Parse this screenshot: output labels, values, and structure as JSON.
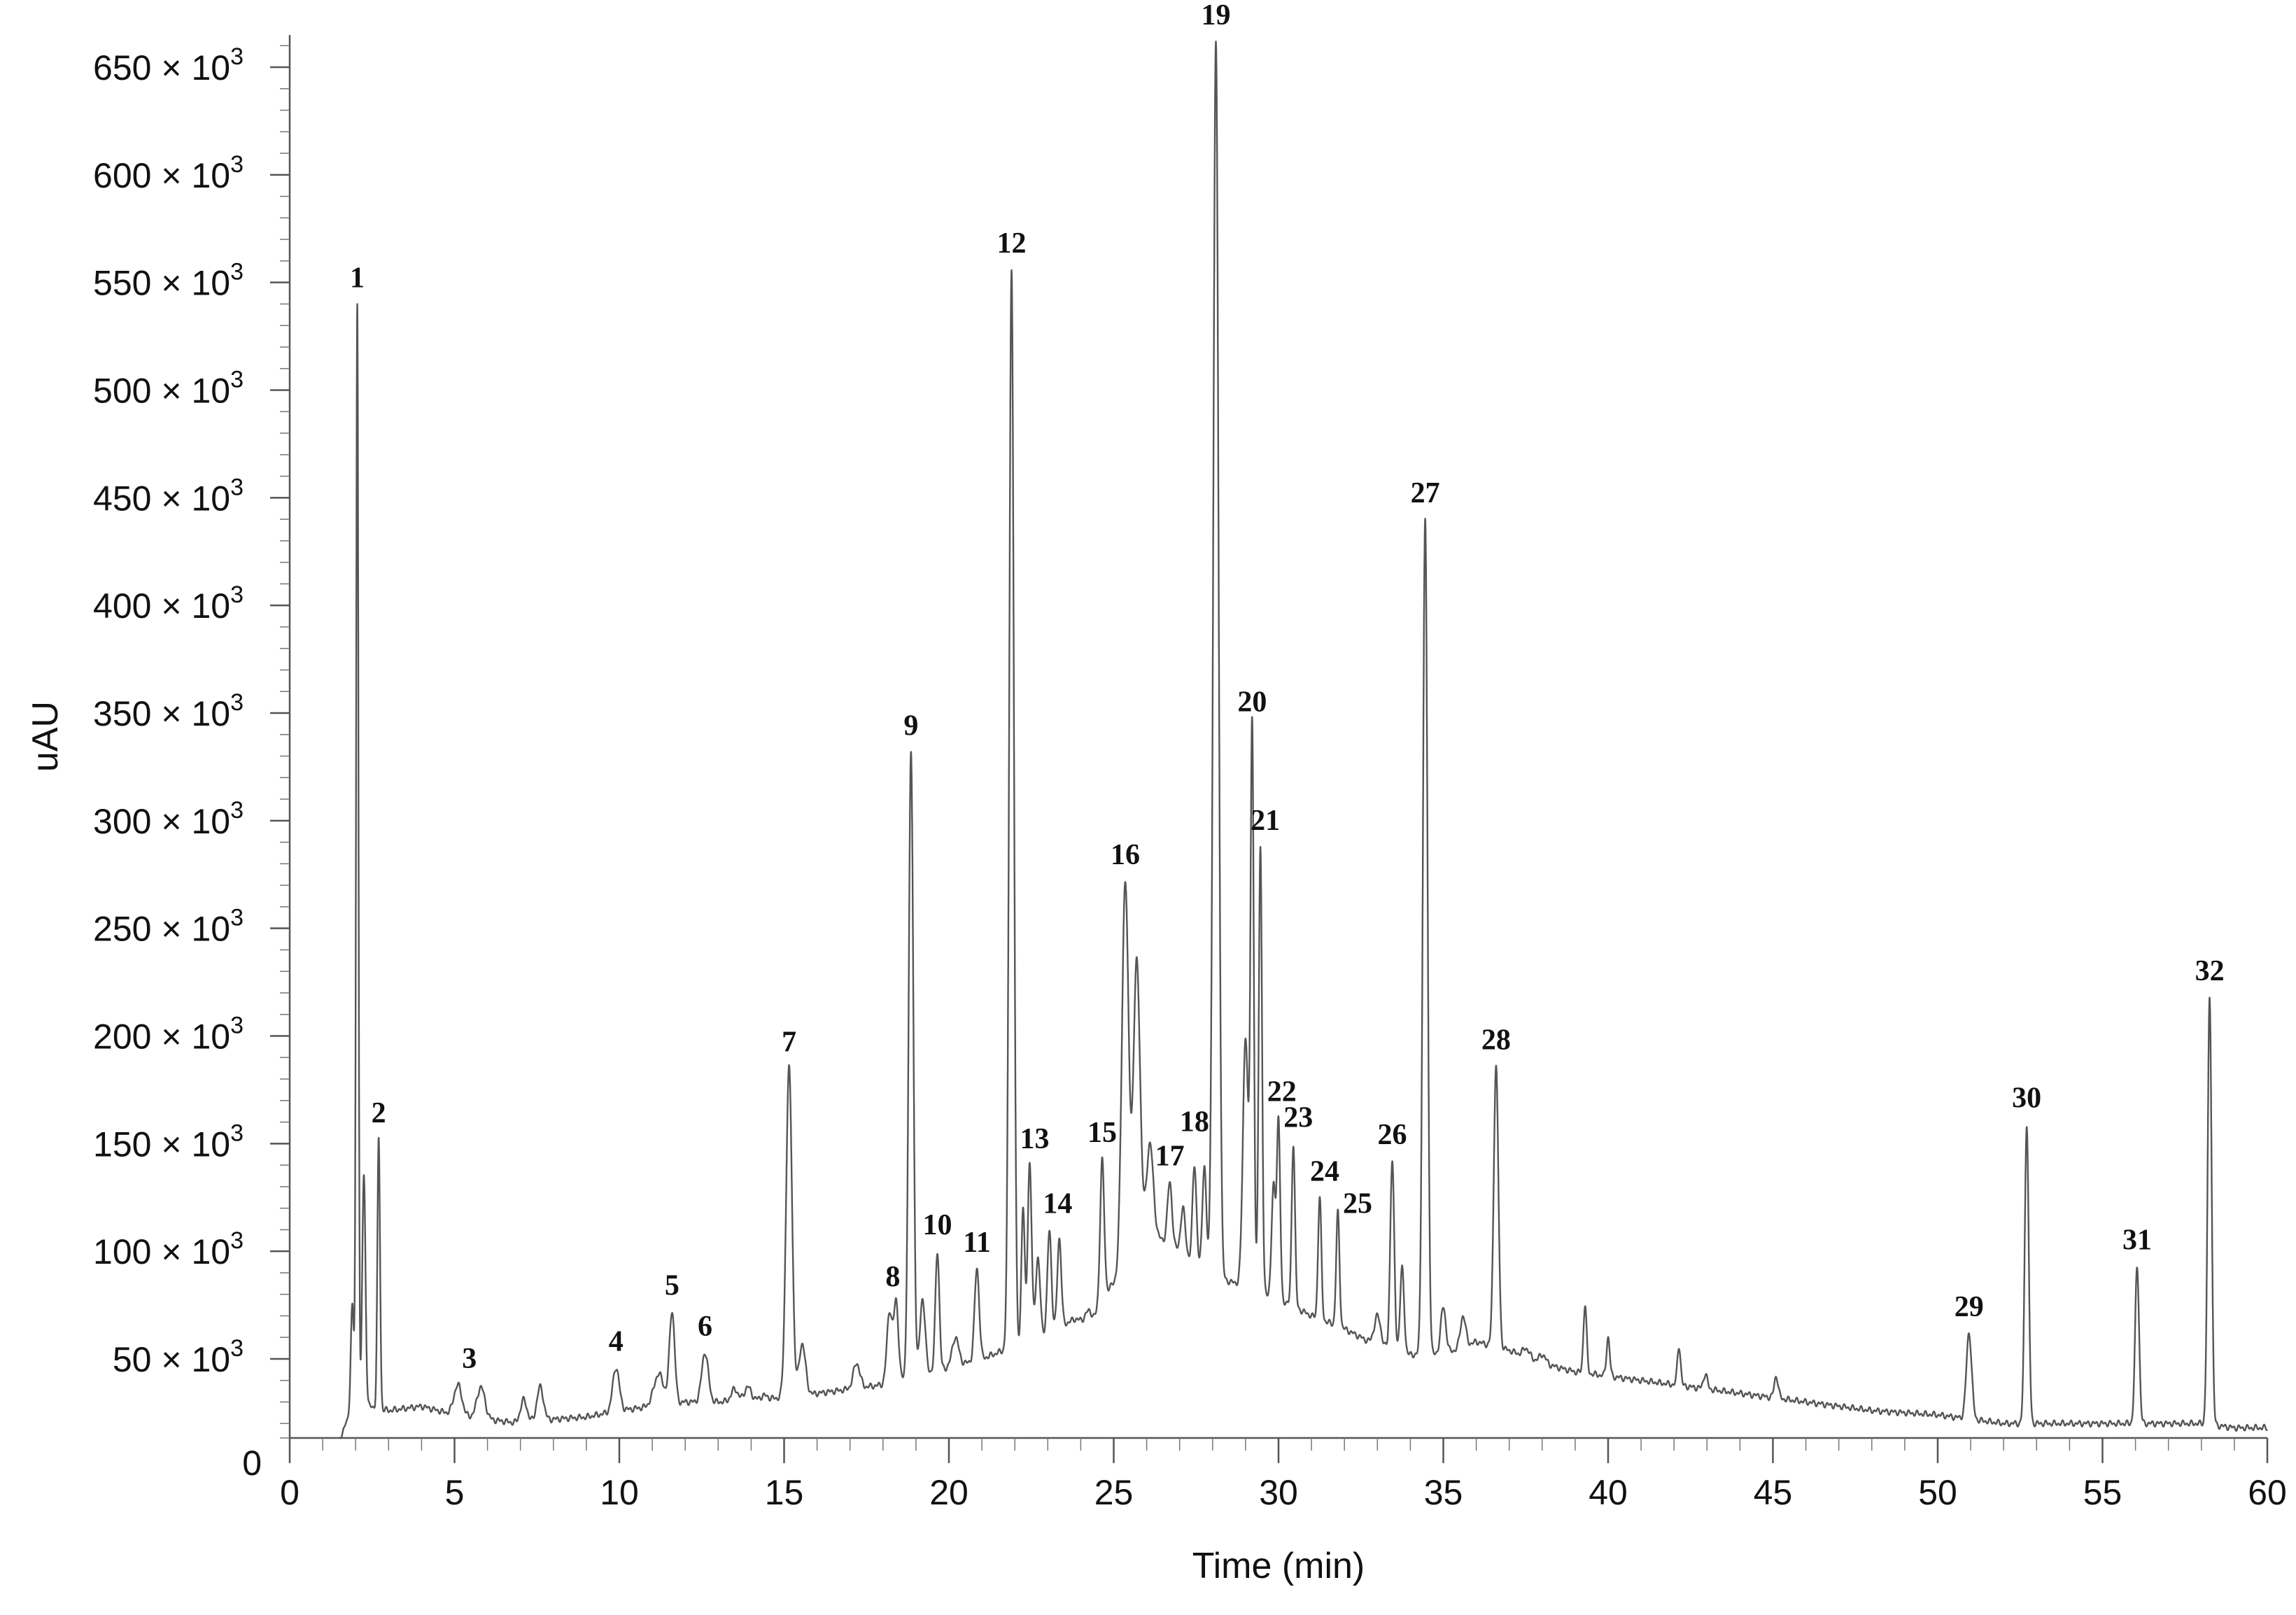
{
  "chart_data": {
    "type": "line",
    "title": "",
    "xlabel": "Time (min)",
    "ylabel": "uAU",
    "xlim": [
      0,
      60
    ],
    "ylim": [
      0,
      660000
    ],
    "x_ticks": [
      {
        "value": 0,
        "label": "0"
      },
      {
        "value": 5,
        "label": "5"
      },
      {
        "value": 10,
        "label": "10"
      },
      {
        "value": 15,
        "label": "15"
      },
      {
        "value": 20,
        "label": "20"
      },
      {
        "value": 25,
        "label": "25"
      },
      {
        "value": 30,
        "label": "30"
      },
      {
        "value": 35,
        "label": "35"
      },
      {
        "value": 40,
        "label": "40"
      },
      {
        "value": 45,
        "label": "45"
      },
      {
        "value": 50,
        "label": "50"
      },
      {
        "value": 55,
        "label": "55"
      },
      {
        "value": 60,
        "label": "60"
      }
    ],
    "y_ticks": [
      {
        "value": 0,
        "label": "0",
        "sup": ""
      },
      {
        "value": 50000,
        "label": "50 × 10",
        "sup": "3"
      },
      {
        "value": 100000,
        "label": "100 × 10",
        "sup": "3"
      },
      {
        "value": 150000,
        "label": "150 × 10",
        "sup": "3"
      },
      {
        "value": 200000,
        "label": "200 × 10",
        "sup": "3"
      },
      {
        "value": 250000,
        "label": "250 × 10",
        "sup": "3"
      },
      {
        "value": 300000,
        "label": "300 × 10",
        "sup": "3"
      },
      {
        "value": 350000,
        "label": "350 × 10",
        "sup": "3"
      },
      {
        "value": 400000,
        "label": "400 × 10",
        "sup": "3"
      },
      {
        "value": 450000,
        "label": "450 × 10",
        "sup": "3"
      },
      {
        "value": 500000,
        "label": "500 × 10",
        "sup": "3"
      },
      {
        "value": 550000,
        "label": "550 × 10",
        "sup": "3"
      },
      {
        "value": 600000,
        "label": "600 × 10",
        "sup": "3"
      },
      {
        "value": 650000,
        "label": "650 × 10",
        "sup": "3"
      }
    ],
    "series": [
      {
        "color": "#555555",
        "baseline": [
          [
            1.5,
            12000
          ],
          [
            1.7,
            20000
          ],
          [
            2.4,
            28000
          ],
          [
            3.0,
            26000
          ],
          [
            4.0,
            28000
          ],
          [
            5.0,
            24000
          ],
          [
            6.0,
            22000
          ],
          [
            7.0,
            20000
          ],
          [
            8.0,
            22000
          ],
          [
            9.0,
            23000
          ],
          [
            10.0,
            26000
          ],
          [
            11.0,
            28000
          ],
          [
            12.0,
            30000
          ],
          [
            13.0,
            30000
          ],
          [
            14.0,
            31000
          ],
          [
            15.0,
            32000
          ],
          [
            16.0,
            34000
          ],
          [
            17.0,
            36000
          ],
          [
            18.0,
            38000
          ],
          [
            19.0,
            42000
          ],
          [
            20.0,
            46000
          ],
          [
            21.0,
            50000
          ],
          [
            22.0,
            56000
          ],
          [
            23.0,
            62000
          ],
          [
            24.0,
            70000
          ],
          [
            25.0,
            85000
          ],
          [
            26.0,
            110000
          ],
          [
            27.0,
            100000
          ],
          [
            28.0,
            88000
          ],
          [
            29.0,
            84000
          ],
          [
            30.0,
            78000
          ],
          [
            31.0,
            70000
          ],
          [
            32.0,
            64000
          ],
          [
            33.0,
            56000
          ],
          [
            34.0,
            52000
          ],
          [
            35.0,
            52000
          ],
          [
            36.0,
            58000
          ],
          [
            37.0,
            54000
          ],
          [
            38.0,
            48000
          ],
          [
            39.0,
            44000
          ],
          [
            40.0,
            42000
          ],
          [
            41.0,
            40000
          ],
          [
            42.0,
            38000
          ],
          [
            43.0,
            36000
          ],
          [
            44.0,
            34000
          ],
          [
            45.0,
            32000
          ],
          [
            46.0,
            30000
          ],
          [
            47.0,
            28000
          ],
          [
            48.0,
            26000
          ],
          [
            49.0,
            25000
          ],
          [
            50.0,
            24000
          ],
          [
            51.0,
            22000
          ],
          [
            52.0,
            20000
          ],
          [
            53.0,
            20000
          ],
          [
            54.0,
            20000
          ],
          [
            55.0,
            20000
          ],
          [
            56.0,
            20000
          ],
          [
            57.0,
            20000
          ],
          [
            58.0,
            20000
          ],
          [
            59.0,
            18000
          ],
          [
            60.0,
            18000
          ]
        ],
        "peaks": [
          [
            1.9,
            75000,
            0.05
          ],
          [
            2.05,
            540000,
            0.035
          ],
          [
            2.25,
            135000,
            0.05
          ],
          [
            2.7,
            152000,
            0.04
          ],
          [
            5.1,
            38000,
            0.12
          ],
          [
            5.8,
            37000,
            0.12
          ],
          [
            7.1,
            31000,
            0.1
          ],
          [
            7.6,
            37000,
            0.1
          ],
          [
            9.9,
            46000,
            0.1
          ],
          [
            11.2,
            43000,
            0.15
          ],
          [
            11.6,
            72000,
            0.08
          ],
          [
            12.6,
            53000,
            0.1
          ],
          [
            13.5,
            36000,
            0.1
          ],
          [
            13.9,
            37000,
            0.1
          ],
          [
            14.4,
            33000,
            0.1
          ],
          [
            15.15,
            185000,
            0.09
          ],
          [
            15.55,
            57000,
            0.1
          ],
          [
            17.2,
            48000,
            0.1
          ],
          [
            18.2,
            72000,
            0.08
          ],
          [
            18.4,
            76000,
            0.07
          ],
          [
            18.85,
            332000,
            0.07
          ],
          [
            19.2,
            78000,
            0.08
          ],
          [
            19.65,
            100000,
            0.06
          ],
          [
            20.2,
            60000,
            0.1
          ],
          [
            20.85,
            92000,
            0.07
          ],
          [
            21.9,
            556000,
            0.07
          ],
          [
            22.25,
            120000,
            0.05
          ],
          [
            22.45,
            140000,
            0.06
          ],
          [
            22.7,
            96000,
            0.07
          ],
          [
            23.05,
            110000,
            0.06
          ],
          [
            23.35,
            106000,
            0.06
          ],
          [
            24.0,
            68000,
            0.1
          ],
          [
            24.4,
            70000,
            0.1
          ],
          [
            24.65,
            143000,
            0.06
          ],
          [
            25.35,
            272000,
            0.1
          ],
          [
            25.7,
            235000,
            0.1
          ],
          [
            26.1,
            150000,
            0.1
          ],
          [
            26.7,
            132000,
            0.07
          ],
          [
            27.1,
            120000,
            0.07
          ],
          [
            27.45,
            140000,
            0.06
          ],
          [
            27.75,
            140000,
            0.06
          ],
          [
            28.1,
            662000,
            0.08
          ],
          [
            29.0,
            200000,
            0.08
          ],
          [
            29.2,
            343000,
            0.05
          ],
          [
            29.45,
            288000,
            0.05
          ],
          [
            29.85,
            130000,
            0.06
          ],
          [
            30.0,
            160000,
            0.05
          ],
          [
            30.45,
            150000,
            0.05
          ],
          [
            31.25,
            125000,
            0.05
          ],
          [
            31.8,
            118000,
            0.05
          ],
          [
            33.0,
            70000,
            0.1
          ],
          [
            33.45,
            142000,
            0.06
          ],
          [
            33.75,
            92000,
            0.06
          ],
          [
            34.45,
            440000,
            0.07
          ],
          [
            35.0,
            74000,
            0.08
          ],
          [
            35.6,
            70000,
            0.08
          ],
          [
            36.6,
            186000,
            0.07
          ],
          [
            37.5,
            55000,
            0.1
          ],
          [
            38.0,
            52000,
            0.1
          ],
          [
            39.3,
            75000,
            0.05
          ],
          [
            40.0,
            60000,
            0.05
          ],
          [
            42.15,
            56000,
            0.05
          ],
          [
            42.95,
            43000,
            0.06
          ],
          [
            45.1,
            42000,
            0.06
          ],
          [
            50.95,
            62000,
            0.08
          ],
          [
            52.7,
            159000,
            0.06
          ],
          [
            56.05,
            93000,
            0.06
          ],
          [
            58.25,
            218000,
            0.06
          ]
        ]
      }
    ],
    "annotations": [
      {
        "text": "1",
        "x": 2.05,
        "y": 540000
      },
      {
        "text": "2",
        "x": 2.7,
        "y": 152000
      },
      {
        "text": "3",
        "x": 5.45,
        "y": 38000
      },
      {
        "text": "4",
        "x": 9.9,
        "y": 46000
      },
      {
        "text": "5",
        "x": 11.6,
        "y": 72000
      },
      {
        "text": "6",
        "x": 12.6,
        "y": 53000
      },
      {
        "text": "7",
        "x": 15.15,
        "y": 185000
      },
      {
        "text": "8",
        "x": 18.3,
        "y": 76000
      },
      {
        "text": "9",
        "x": 18.85,
        "y": 332000
      },
      {
        "text": "10",
        "x": 19.65,
        "y": 100000
      },
      {
        "text": "11",
        "x": 20.85,
        "y": 92000
      },
      {
        "text": "12",
        "x": 21.9,
        "y": 556000
      },
      {
        "text": "13",
        "x": 22.6,
        "y": 140000
      },
      {
        "text": "14",
        "x": 23.3,
        "y": 110000
      },
      {
        "text": "15",
        "x": 24.65,
        "y": 143000
      },
      {
        "text": "16",
        "x": 25.35,
        "y": 272000
      },
      {
        "text": "17",
        "x": 26.7,
        "y": 132000
      },
      {
        "text": "18",
        "x": 27.45,
        "y": 148000
      },
      {
        "text": "19",
        "x": 28.1,
        "y": 662000
      },
      {
        "text": "20",
        "x": 29.2,
        "y": 343000
      },
      {
        "text": "21",
        "x": 29.6,
        "y": 288000
      },
      {
        "text": "22",
        "x": 30.1,
        "y": 162000
      },
      {
        "text": "23",
        "x": 30.6,
        "y": 150000
      },
      {
        "text": "24",
        "x": 31.4,
        "y": 125000
      },
      {
        "text": "25",
        "x": 32.4,
        "y": 110000
      },
      {
        "text": "26",
        "x": 33.45,
        "y": 142000
      },
      {
        "text": "27",
        "x": 34.45,
        "y": 440000
      },
      {
        "text": "28",
        "x": 36.6,
        "y": 186000
      },
      {
        "text": "29",
        "x": 50.95,
        "y": 62000
      },
      {
        "text": "30",
        "x": 52.7,
        "y": 159000
      },
      {
        "text": "31",
        "x": 56.05,
        "y": 93000
      },
      {
        "text": "32",
        "x": 58.25,
        "y": 218000
      }
    ]
  }
}
